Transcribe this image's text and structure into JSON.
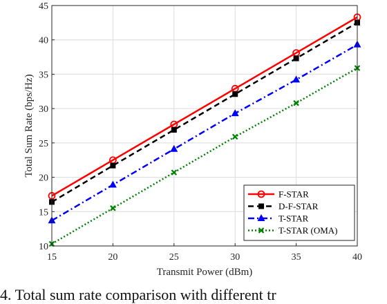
{
  "caption": "4. Total sum rate comparison with different tr",
  "chart_data": {
    "type": "line",
    "xlabel": "Transmit Power (dBm)",
    "ylabel": "Total Sum Rate (bps/Hz)",
    "xlim": [
      15,
      40
    ],
    "ylim": [
      10,
      45
    ],
    "xticks": [
      15,
      20,
      25,
      30,
      35,
      40
    ],
    "yticks": [
      10,
      15,
      20,
      25,
      30,
      35,
      40,
      45
    ],
    "grid": true,
    "legend_position": "bottom-right",
    "x": [
      15,
      20,
      25,
      30,
      35,
      40
    ],
    "series": [
      {
        "name": "F-STAR",
        "values": [
          17.3,
          22.5,
          27.7,
          32.9,
          38.1,
          43.3
        ],
        "color": "#ff0000",
        "dash": "solid",
        "marker": "circle"
      },
      {
        "name": "D-F-STAR",
        "values": [
          16.4,
          21.7,
          26.9,
          32.1,
          37.3,
          42.5
        ],
        "color": "#000000",
        "dash": "dashed",
        "marker": "square"
      },
      {
        "name": "T-STAR",
        "values": [
          13.7,
          18.9,
          24.1,
          29.3,
          34.2,
          39.3
        ],
        "color": "#0000ff",
        "dash": "dashdot",
        "marker": "triangle"
      },
      {
        "name": "T-STAR (OMA)",
        "values": [
          10.3,
          15.5,
          20.7,
          25.9,
          30.8,
          35.9
        ],
        "color": "#008000",
        "dash": "dotted",
        "marker": "x"
      }
    ]
  }
}
